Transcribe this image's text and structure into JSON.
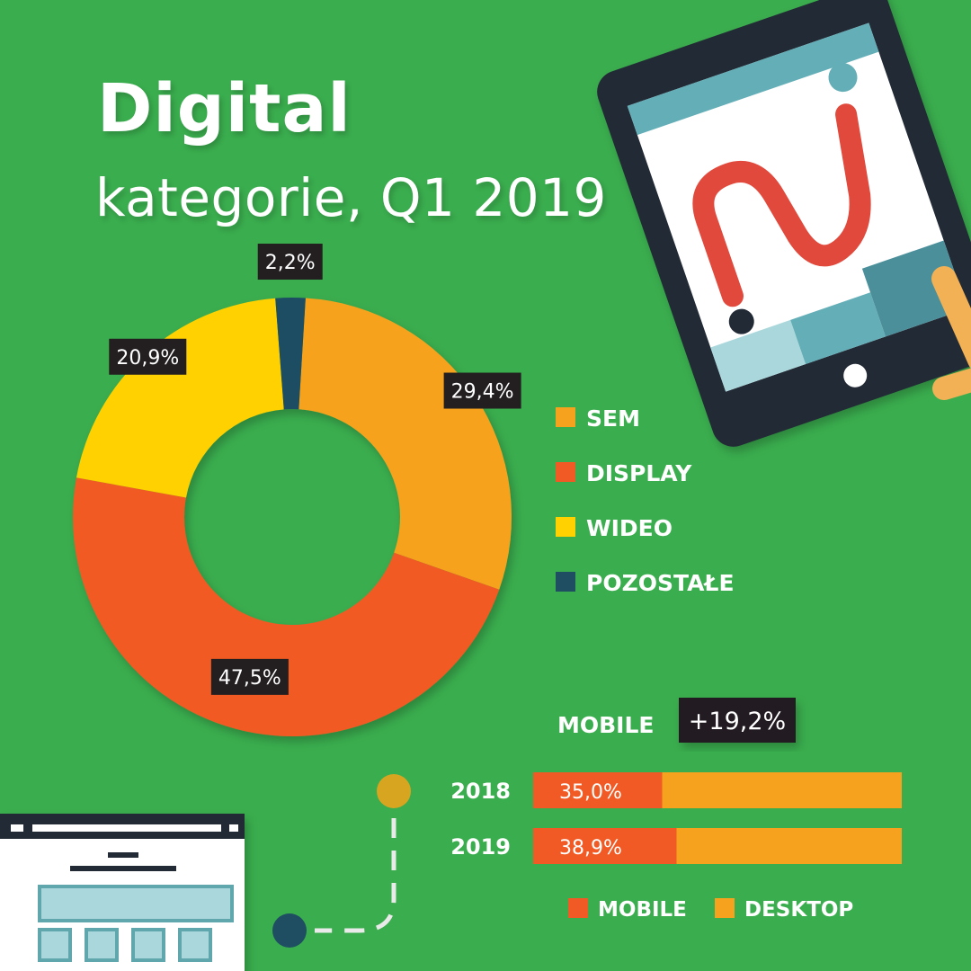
{
  "title": "Digital",
  "subtitle": "kategorie, Q1 2019",
  "colors": {
    "background": "#3aad4e",
    "sem": "#f7a21f",
    "display": "#f15a24",
    "wideo": "#ffd100",
    "pozostale": "#1f4e63",
    "label_box": "#231f20"
  },
  "chart_data": [
    {
      "type": "pie",
      "style": "donut",
      "categories": [
        "SEM",
        "DISPLAY",
        "WIDEO",
        "POZOSTAŁE"
      ],
      "values": [
        29.4,
        47.5,
        20.9,
        2.2
      ],
      "value_labels": [
        "29,4%",
        "47,5%",
        "20,9%",
        "2,2%"
      ],
      "colors": [
        "#f7a21f",
        "#f15a24",
        "#ffd100",
        "#1f4e63"
      ],
      "legend": "right"
    },
    {
      "type": "bar",
      "orientation": "horizontal",
      "stacked": "100%",
      "title": "MOBILE",
      "badge": "+19,2%",
      "categories": [
        "2018",
        "2019"
      ],
      "series": [
        {
          "name": "MOBILE",
          "values": [
            35.0,
            38.9
          ],
          "labels": [
            "35,0%",
            "38,9%"
          ],
          "color": "#f15a24"
        },
        {
          "name": "DESKTOP",
          "values": [
            65.0,
            61.1
          ],
          "color": "#f7a21f"
        }
      ],
      "legend": "bottom"
    }
  ],
  "decor": {
    "tablet_icon": "tablet-with-path-icon",
    "website_icon": "website-layout-icon",
    "path_icon": "dashed-path-icon"
  }
}
